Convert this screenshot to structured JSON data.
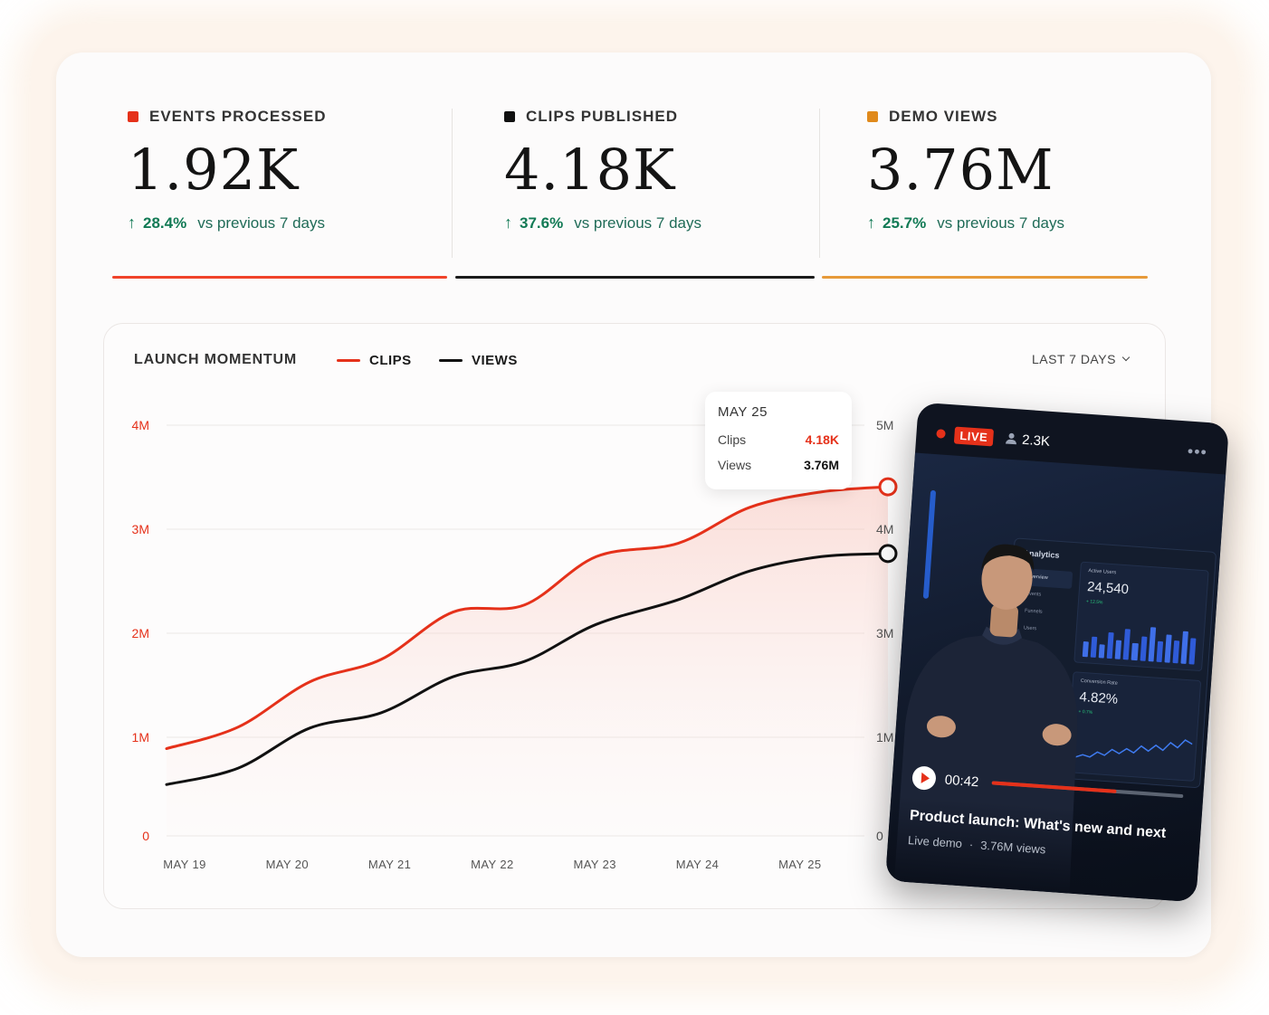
{
  "kpis": [
    {
      "label": "EVENTS PROCESSED",
      "value": "1.92K",
      "delta": "28.4%",
      "comparison": "vs previous 7 days",
      "color": "#e5311a"
    },
    {
      "label": "CLIPS PUBLISHED",
      "value": "4.18K",
      "delta": "37.6%",
      "comparison": "vs previous 7 days",
      "color": "#111111"
    },
    {
      "label": "DEMO VIEWS",
      "value": "3.76M",
      "delta": "25.7%",
      "comparison": "vs previous 7 days",
      "color": "#e08a1c"
    }
  ],
  "chart": {
    "title": "LAUNCH MOMENTUM",
    "range_label": "LAST 7 DAYS",
    "legend": [
      {
        "name": "CLIPS",
        "color": "#e5311a"
      },
      {
        "name": "VIEWS",
        "color": "#111111"
      }
    ]
  },
  "chart_data": {
    "type": "line",
    "x": [
      "MAY 19",
      "MAY 20",
      "MAY 21",
      "MAY 22",
      "MAY 23",
      "MAY 24",
      "MAY 25"
    ],
    "y_left": {
      "ticks": [
        "0",
        "1M",
        "2M",
        "3M",
        "4M"
      ],
      "ylim": [
        0,
        4000000
      ],
      "color": "#e5311a"
    },
    "y_right": {
      "ticks": [
        "0",
        "1M",
        "3M",
        "4M",
        "5M"
      ],
      "color": "#555555"
    },
    "grid": true,
    "series": [
      {
        "name": "CLIPS",
        "axis": "left",
        "color": "#e5311a",
        "points": [
          [
            0.0,
            0.85
          ],
          [
            0.14,
            1.06
          ],
          [
            0.28,
            1.5
          ],
          [
            0.42,
            1.72
          ],
          [
            0.56,
            2.18
          ],
          [
            0.7,
            2.25
          ],
          [
            0.84,
            2.72
          ],
          [
            1.0,
            2.85
          ],
          [
            1.14,
            3.2
          ],
          [
            1.28,
            3.35
          ],
          [
            1.41,
            3.4
          ]
        ]
      },
      {
        "name": "VIEWS",
        "axis": "left",
        "color": "#111111",
        "points": [
          [
            0.0,
            0.5
          ],
          [
            0.14,
            0.66
          ],
          [
            0.28,
            1.05
          ],
          [
            0.42,
            1.2
          ],
          [
            0.56,
            1.55
          ],
          [
            0.7,
            1.7
          ],
          [
            0.84,
            2.06
          ],
          [
            1.0,
            2.3
          ],
          [
            1.14,
            2.58
          ],
          [
            1.28,
            2.72
          ],
          [
            1.41,
            2.75
          ]
        ]
      }
    ],
    "tooltip": {
      "date": "MAY 25",
      "rows": [
        {
          "label": "Clips",
          "value": "4.18K"
        },
        {
          "label": "Views",
          "value": "3.76M"
        }
      ]
    }
  },
  "video": {
    "live_label": "LIVE",
    "viewers": "2.3K",
    "more": "•••",
    "screen": {
      "title": "Analytics",
      "nav": [
        "Overview",
        "Events",
        "Funnels",
        "Users",
        "Settings"
      ],
      "tile1": {
        "label": "Active Users",
        "value": "24,540",
        "delta": "+ 12.5%"
      },
      "tile2": {
        "label": "Conversion Rate",
        "value": "4.82%",
        "delta": "+ 0.7%"
      }
    },
    "timecode": "00:42",
    "progress": 0.65,
    "title": "Product launch: What's new and next",
    "meta_type": "Live demo",
    "meta_views": "3.76M views"
  }
}
